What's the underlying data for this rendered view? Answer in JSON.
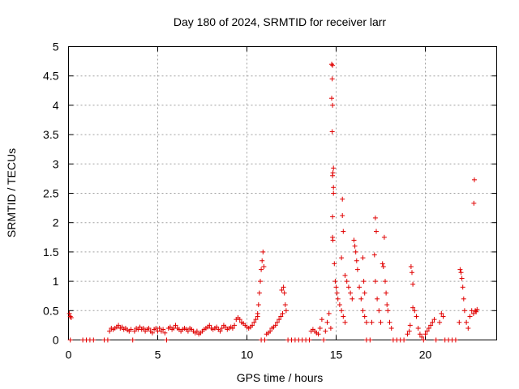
{
  "chart_data": {
    "type": "scatter",
    "title": "Day 180 of 2024, SRMTID for receiver larr",
    "xlabel": "GPS time / hours",
    "ylabel": "SRMTID / TECUs",
    "xlim": [
      0,
      24
    ],
    "ylim": [
      0,
      5
    ],
    "xticks": [
      0,
      5,
      10,
      15,
      20
    ],
    "yticks": [
      0,
      0.5,
      1,
      1.5,
      2,
      2.5,
      3,
      3.5,
      4,
      4.5,
      5
    ],
    "grid": true,
    "marker": "+",
    "color": "#e00000",
    "series": [
      {
        "name": "SRMTID",
        "points": [
          [
            0.05,
            0.45
          ],
          [
            0.1,
            0.4
          ],
          [
            0.15,
            0.38
          ],
          [
            0.1,
            0.0
          ],
          [
            0.8,
            0.0
          ],
          [
            1.0,
            0.0
          ],
          [
            1.2,
            0.0
          ],
          [
            1.4,
            0.0
          ],
          [
            2.0,
            0.0
          ],
          [
            2.2,
            0.0
          ],
          [
            2.3,
            0.15
          ],
          [
            2.4,
            0.2
          ],
          [
            2.5,
            0.18
          ],
          [
            2.6,
            0.2
          ],
          [
            2.7,
            0.22
          ],
          [
            2.8,
            0.25
          ],
          [
            2.9,
            0.2
          ],
          [
            3.0,
            0.22
          ],
          [
            3.1,
            0.18
          ],
          [
            3.2,
            0.2
          ],
          [
            3.3,
            0.17
          ],
          [
            3.4,
            0.15
          ],
          [
            3.5,
            0.18
          ],
          [
            3.6,
            0.0
          ],
          [
            3.7,
            0.15
          ],
          [
            3.8,
            0.2
          ],
          [
            3.9,
            0.18
          ],
          [
            4.0,
            0.22
          ],
          [
            4.1,
            0.18
          ],
          [
            4.2,
            0.2
          ],
          [
            4.3,
            0.15
          ],
          [
            4.4,
            0.18
          ],
          [
            4.5,
            0.2
          ],
          [
            4.6,
            0.15
          ],
          [
            4.7,
            0.12
          ],
          [
            4.8,
            0.18
          ],
          [
            4.9,
            0.2
          ],
          [
            5.0,
            0.15
          ],
          [
            5.1,
            0.2
          ],
          [
            5.2,
            0.15
          ],
          [
            5.3,
            0.18
          ],
          [
            5.4,
            0.12
          ],
          [
            5.5,
            0.0
          ],
          [
            5.6,
            0.2
          ],
          [
            5.7,
            0.22
          ],
          [
            5.8,
            0.18
          ],
          [
            5.9,
            0.2
          ],
          [
            6.0,
            0.25
          ],
          [
            6.1,
            0.2
          ],
          [
            6.2,
            0.18
          ],
          [
            6.3,
            0.15
          ],
          [
            6.4,
            0.18
          ],
          [
            6.5,
            0.2
          ],
          [
            6.6,
            0.18
          ],
          [
            6.7,
            0.15
          ],
          [
            6.8,
            0.2
          ],
          [
            6.9,
            0.18
          ],
          [
            7.0,
            0.15
          ],
          [
            7.1,
            0.12
          ],
          [
            7.2,
            0.15
          ],
          [
            7.3,
            0.1
          ],
          [
            7.4,
            0.12
          ],
          [
            7.5,
            0.15
          ],
          [
            7.6,
            0.18
          ],
          [
            7.7,
            0.2
          ],
          [
            7.8,
            0.22
          ],
          [
            7.9,
            0.25
          ],
          [
            8.0,
            0.2
          ],
          [
            8.1,
            0.18
          ],
          [
            8.2,
            0.2
          ],
          [
            8.3,
            0.22
          ],
          [
            8.4,
            0.18
          ],
          [
            8.5,
            0.15
          ],
          [
            8.6,
            0.2
          ],
          [
            8.7,
            0.25
          ],
          [
            8.8,
            0.22
          ],
          [
            8.9,
            0.18
          ],
          [
            9.0,
            0.2
          ],
          [
            9.1,
            0.22
          ],
          [
            9.2,
            0.2
          ],
          [
            9.3,
            0.25
          ],
          [
            9.4,
            0.35
          ],
          [
            9.5,
            0.38
          ],
          [
            9.6,
            0.35
          ],
          [
            9.7,
            0.3
          ],
          [
            9.8,
            0.28
          ],
          [
            9.9,
            0.25
          ],
          [
            10.0,
            0.22
          ],
          [
            10.1,
            0.2
          ],
          [
            10.2,
            0.22
          ],
          [
            10.3,
            0.25
          ],
          [
            10.4,
            0.3
          ],
          [
            10.5,
            0.35
          ],
          [
            10.6,
            0.4
          ],
          [
            10.6,
            0.45
          ],
          [
            10.65,
            0.6
          ],
          [
            10.7,
            0.8
          ],
          [
            10.75,
            1.0
          ],
          [
            10.8,
            1.2
          ],
          [
            10.85,
            1.35
          ],
          [
            10.9,
            1.5
          ],
          [
            10.95,
            1.25
          ],
          [
            10.8,
            0.0
          ],
          [
            11.0,
            0.0
          ],
          [
            11.1,
            0.1
          ],
          [
            11.2,
            0.12
          ],
          [
            11.3,
            0.15
          ],
          [
            11.4,
            0.2
          ],
          [
            11.5,
            0.22
          ],
          [
            11.6,
            0.25
          ],
          [
            11.7,
            0.3
          ],
          [
            11.8,
            0.35
          ],
          [
            11.9,
            0.4
          ],
          [
            12.0,
            0.45
          ],
          [
            11.95,
            0.85
          ],
          [
            12.05,
            0.9
          ],
          [
            12.1,
            0.8
          ],
          [
            12.15,
            0.6
          ],
          [
            12.2,
            0.5
          ],
          [
            12.3,
            0.0
          ],
          [
            12.5,
            0.0
          ],
          [
            12.7,
            0.0
          ],
          [
            12.9,
            0.0
          ],
          [
            13.1,
            0.0
          ],
          [
            13.3,
            0.0
          ],
          [
            13.5,
            0.0
          ],
          [
            13.6,
            0.15
          ],
          [
            13.7,
            0.18
          ],
          [
            13.8,
            0.15
          ],
          [
            13.9,
            0.12
          ],
          [
            14.0,
            0.1
          ],
          [
            14.1,
            0.2
          ],
          [
            14.2,
            0.35
          ],
          [
            14.3,
            0.0
          ],
          [
            14.4,
            0.15
          ],
          [
            14.5,
            0.3
          ],
          [
            14.6,
            0.45
          ],
          [
            14.7,
            0.2
          ],
          [
            14.75,
            4.7
          ],
          [
            14.8,
            4.68
          ],
          [
            14.78,
            4.45
          ],
          [
            14.75,
            4.12
          ],
          [
            14.8,
            4.0
          ],
          [
            14.78,
            3.55
          ],
          [
            14.85,
            2.93
          ],
          [
            14.82,
            2.85
          ],
          [
            14.8,
            2.8
          ],
          [
            14.85,
            2.6
          ],
          [
            14.85,
            2.5
          ],
          [
            14.8,
            2.1
          ],
          [
            14.8,
            1.75
          ],
          [
            14.82,
            1.7
          ],
          [
            14.9,
            1.3
          ],
          [
            14.95,
            1.0
          ],
          [
            15.0,
            0.9
          ],
          [
            15.05,
            0.8
          ],
          [
            15.1,
            0.7
          ],
          [
            15.2,
            0.6
          ],
          [
            15.3,
            0.5
          ],
          [
            15.4,
            0.4
          ],
          [
            15.5,
            0.3
          ],
          [
            15.35,
            2.4
          ],
          [
            15.35,
            2.12
          ],
          [
            15.4,
            1.85
          ],
          [
            15.3,
            1.4
          ],
          [
            15.5,
            1.1
          ],
          [
            15.6,
            1.0
          ],
          [
            15.7,
            0.9
          ],
          [
            15.8,
            0.8
          ],
          [
            15.9,
            0.7
          ],
          [
            16.0,
            1.7
          ],
          [
            16.05,
            1.6
          ],
          [
            16.1,
            1.5
          ],
          [
            16.15,
            1.35
          ],
          [
            16.2,
            1.2
          ],
          [
            16.3,
            0.9
          ],
          [
            16.4,
            0.7
          ],
          [
            16.5,
            0.5
          ],
          [
            16.6,
            0.4
          ],
          [
            16.7,
            0.3
          ],
          [
            16.5,
            1.4
          ],
          [
            16.55,
            1.0
          ],
          [
            16.6,
            0.8
          ],
          [
            16.7,
            0.0
          ],
          [
            16.9,
            0.0
          ],
          [
            17.0,
            0.3
          ],
          [
            17.2,
            2.08
          ],
          [
            17.25,
            1.85
          ],
          [
            17.15,
            1.45
          ],
          [
            17.2,
            1.0
          ],
          [
            17.3,
            0.7
          ],
          [
            17.4,
            0.5
          ],
          [
            17.5,
            0.3
          ],
          [
            17.6,
            1.3
          ],
          [
            17.65,
            1.25
          ],
          [
            17.7,
            1.75
          ],
          [
            17.75,
            1.0
          ],
          [
            17.8,
            0.8
          ],
          [
            17.85,
            0.6
          ],
          [
            17.9,
            0.5
          ],
          [
            18.0,
            0.3
          ],
          [
            18.1,
            0.2
          ],
          [
            18.2,
            0.0
          ],
          [
            18.4,
            0.0
          ],
          [
            18.6,
            0.0
          ],
          [
            18.8,
            0.0
          ],
          [
            19.0,
            0.1
          ],
          [
            19.1,
            0.15
          ],
          [
            19.15,
            0.25
          ],
          [
            19.2,
            1.25
          ],
          [
            19.25,
            1.15
          ],
          [
            19.3,
            0.95
          ],
          [
            19.3,
            0.55
          ],
          [
            19.4,
            0.5
          ],
          [
            19.5,
            0.4
          ],
          [
            19.6,
            0.2
          ],
          [
            19.7,
            0.1
          ],
          [
            19.8,
            0.05
          ],
          [
            19.9,
            0.0
          ],
          [
            20.0,
            0.1
          ],
          [
            20.1,
            0.15
          ],
          [
            20.2,
            0.2
          ],
          [
            20.3,
            0.25
          ],
          [
            20.4,
            0.3
          ],
          [
            20.5,
            0.35
          ],
          [
            20.6,
            0.0
          ],
          [
            20.8,
            0.3
          ],
          [
            20.9,
            0.45
          ],
          [
            21.0,
            0.4
          ],
          [
            21.1,
            0.0
          ],
          [
            21.3,
            0.0
          ],
          [
            21.5,
            0.0
          ],
          [
            21.7,
            0.0
          ],
          [
            21.9,
            0.3
          ],
          [
            21.95,
            1.2
          ],
          [
            22.0,
            1.15
          ],
          [
            22.05,
            1.05
          ],
          [
            22.1,
            0.9
          ],
          [
            22.15,
            0.7
          ],
          [
            22.2,
            0.5
          ],
          [
            22.3,
            0.3
          ],
          [
            22.4,
            0.2
          ],
          [
            22.5,
            0.4
          ],
          [
            22.6,
            0.5
          ],
          [
            22.7,
            0.45
          ],
          [
            22.8,
            0.5
          ],
          [
            22.85,
            0.48
          ],
          [
            22.9,
            0.52
          ],
          [
            22.75,
            2.73
          ],
          [
            22.72,
            2.33
          ]
        ]
      }
    ]
  }
}
